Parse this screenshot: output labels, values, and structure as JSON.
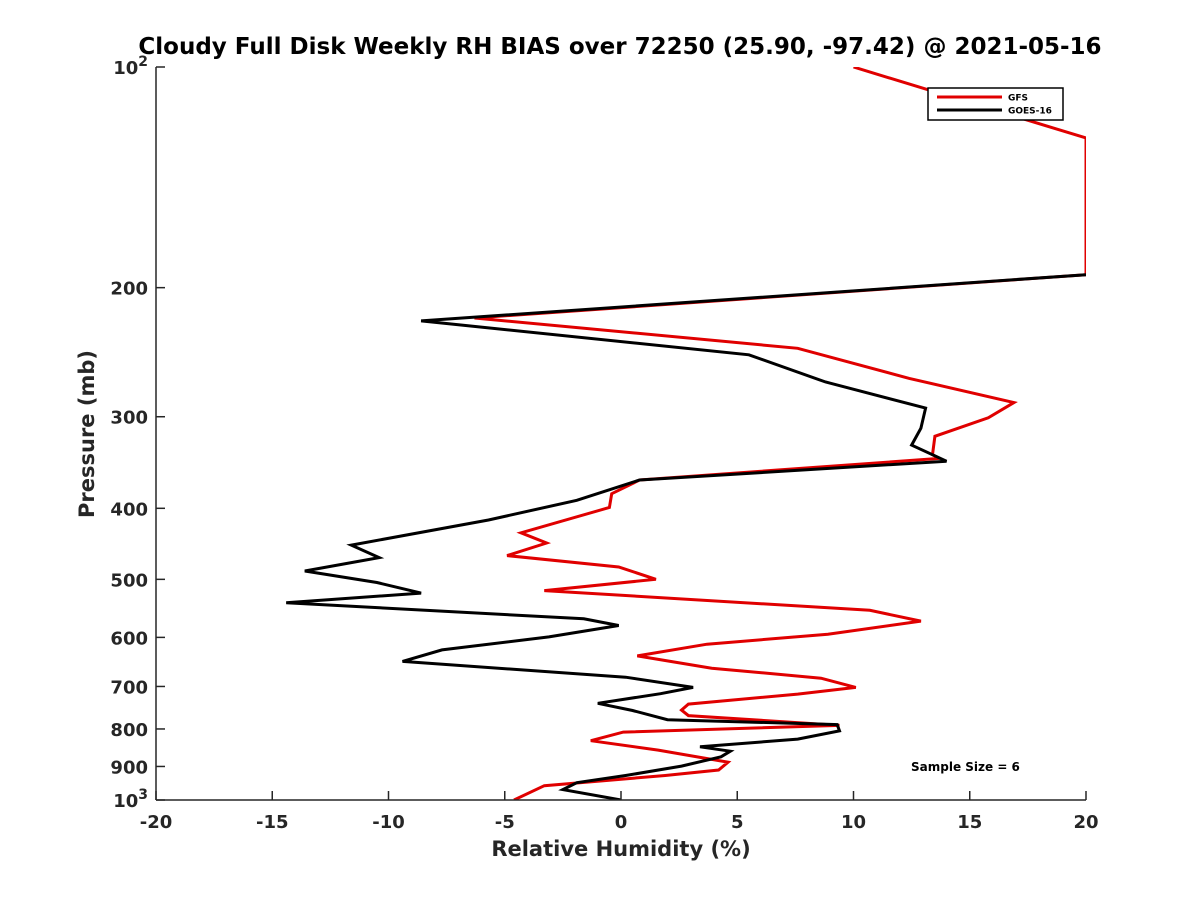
{
  "chart_data": {
    "type": "line",
    "title": "Cloudy Full Disk Weekly RH BIAS over 72250 (25.90, -97.42) @ 2021-05-16",
    "xlabel": "Relative Humidity (%)",
    "ylabel": "Pressure (mb)",
    "xlim": [
      -20,
      20
    ],
    "ylim": [
      100,
      1000
    ],
    "y_scale": "log",
    "y_reversed": true,
    "grid": false,
    "legend_location": "top-right",
    "annotation": "Sample Size = 6",
    "x_ticks": [
      -20,
      -15,
      -10,
      -5,
      0,
      5,
      10,
      15,
      20
    ],
    "x_tick_labels": [
      "-20",
      "-15",
      "-10",
      "-5",
      "0",
      "5",
      "10",
      "15",
      "20"
    ],
    "y_ticks": [
      {
        "value": 100,
        "label": "10",
        "sup": "2"
      },
      {
        "value": 200,
        "label": "200",
        "sup": ""
      },
      {
        "value": 300,
        "label": "300",
        "sup": ""
      },
      {
        "value": 400,
        "label": "400",
        "sup": ""
      },
      {
        "value": 500,
        "label": "500",
        "sup": ""
      },
      {
        "value": 600,
        "label": "600",
        "sup": ""
      },
      {
        "value": 700,
        "label": "700",
        "sup": ""
      },
      {
        "value": 800,
        "label": "800",
        "sup": ""
      },
      {
        "value": 900,
        "label": "900",
        "sup": ""
      },
      {
        "value": 1000,
        "label": "10",
        "sup": "3"
      }
    ],
    "series": [
      {
        "name": "GFS",
        "color": "#e00000",
        "points": [
          [
            10,
            100
          ],
          [
            20,
            125
          ],
          [
            20,
            192
          ],
          [
            -6.3,
            220
          ],
          [
            7.6,
            242
          ],
          [
            12.4,
            266
          ],
          [
            16.9,
            287
          ],
          [
            15.8,
            301
          ],
          [
            13.5,
            319
          ],
          [
            13.4,
            338
          ],
          [
            13.7,
            342
          ],
          [
            0.8,
            366
          ],
          [
            -0.4,
            382
          ],
          [
            -0.5,
            399
          ],
          [
            -4.3,
            432
          ],
          [
            -3.2,
            446
          ],
          [
            -4.9,
            464
          ],
          [
            -0.1,
            481
          ],
          [
            1.5,
            500
          ],
          [
            -3.3,
            518
          ],
          [
            10.7,
            551
          ],
          [
            12.9,
            570
          ],
          [
            8.9,
            594
          ],
          [
            3.7,
            613
          ],
          [
            0.7,
            636
          ],
          [
            3.9,
            661
          ],
          [
            8.6,
            682
          ],
          [
            10.1,
            702
          ],
          [
            7.6,
            717
          ],
          [
            2.9,
            740
          ],
          [
            2.6,
            754
          ],
          [
            2.9,
            767
          ],
          [
            9.4,
            791
          ],
          [
            0.1,
            808
          ],
          [
            -1.3,
            830
          ],
          [
            1.6,
            855
          ],
          [
            4.6,
            888
          ],
          [
            4.2,
            910
          ],
          [
            1.9,
            926
          ],
          [
            -3.3,
            956
          ],
          [
            -4.6,
            1000
          ]
        ]
      },
      {
        "name": "GOES-16",
        "color": "#000000",
        "points": [
          [
            20,
            192
          ],
          [
            -8.6,
            222
          ],
          [
            5.5,
            247
          ],
          [
            8.8,
            269
          ],
          [
            13.1,
            292
          ],
          [
            12.9,
            311
          ],
          [
            12.5,
            328
          ],
          [
            14.0,
            345
          ],
          [
            0.8,
            366
          ],
          [
            -1.9,
            390
          ],
          [
            -5.7,
            415
          ],
          [
            -11.6,
            449
          ],
          [
            -10.4,
            467
          ],
          [
            -13.6,
            487
          ],
          [
            -10.5,
            505
          ],
          [
            -8.6,
            522
          ],
          [
            -14.4,
            538
          ],
          [
            -1.6,
            566
          ],
          [
            -0.1,
            578
          ],
          [
            -3.1,
            599
          ],
          [
            -7.7,
            624
          ],
          [
            -9.4,
            647
          ],
          [
            0.2,
            680
          ],
          [
            3.1,
            702
          ],
          [
            1.7,
            716
          ],
          [
            -1.0,
            738
          ],
          [
            0.5,
            755
          ],
          [
            2.0,
            777
          ],
          [
            9.3,
            789
          ],
          [
            9.4,
            805
          ],
          [
            7.6,
            826
          ],
          [
            3.4,
            846
          ],
          [
            4.7,
            858
          ],
          [
            4.3,
            873
          ],
          [
            2.6,
            899
          ],
          [
            0.2,
            926
          ],
          [
            -1.9,
            947
          ],
          [
            -2.5,
            968
          ],
          [
            0.0,
            1000
          ]
        ]
      }
    ]
  }
}
